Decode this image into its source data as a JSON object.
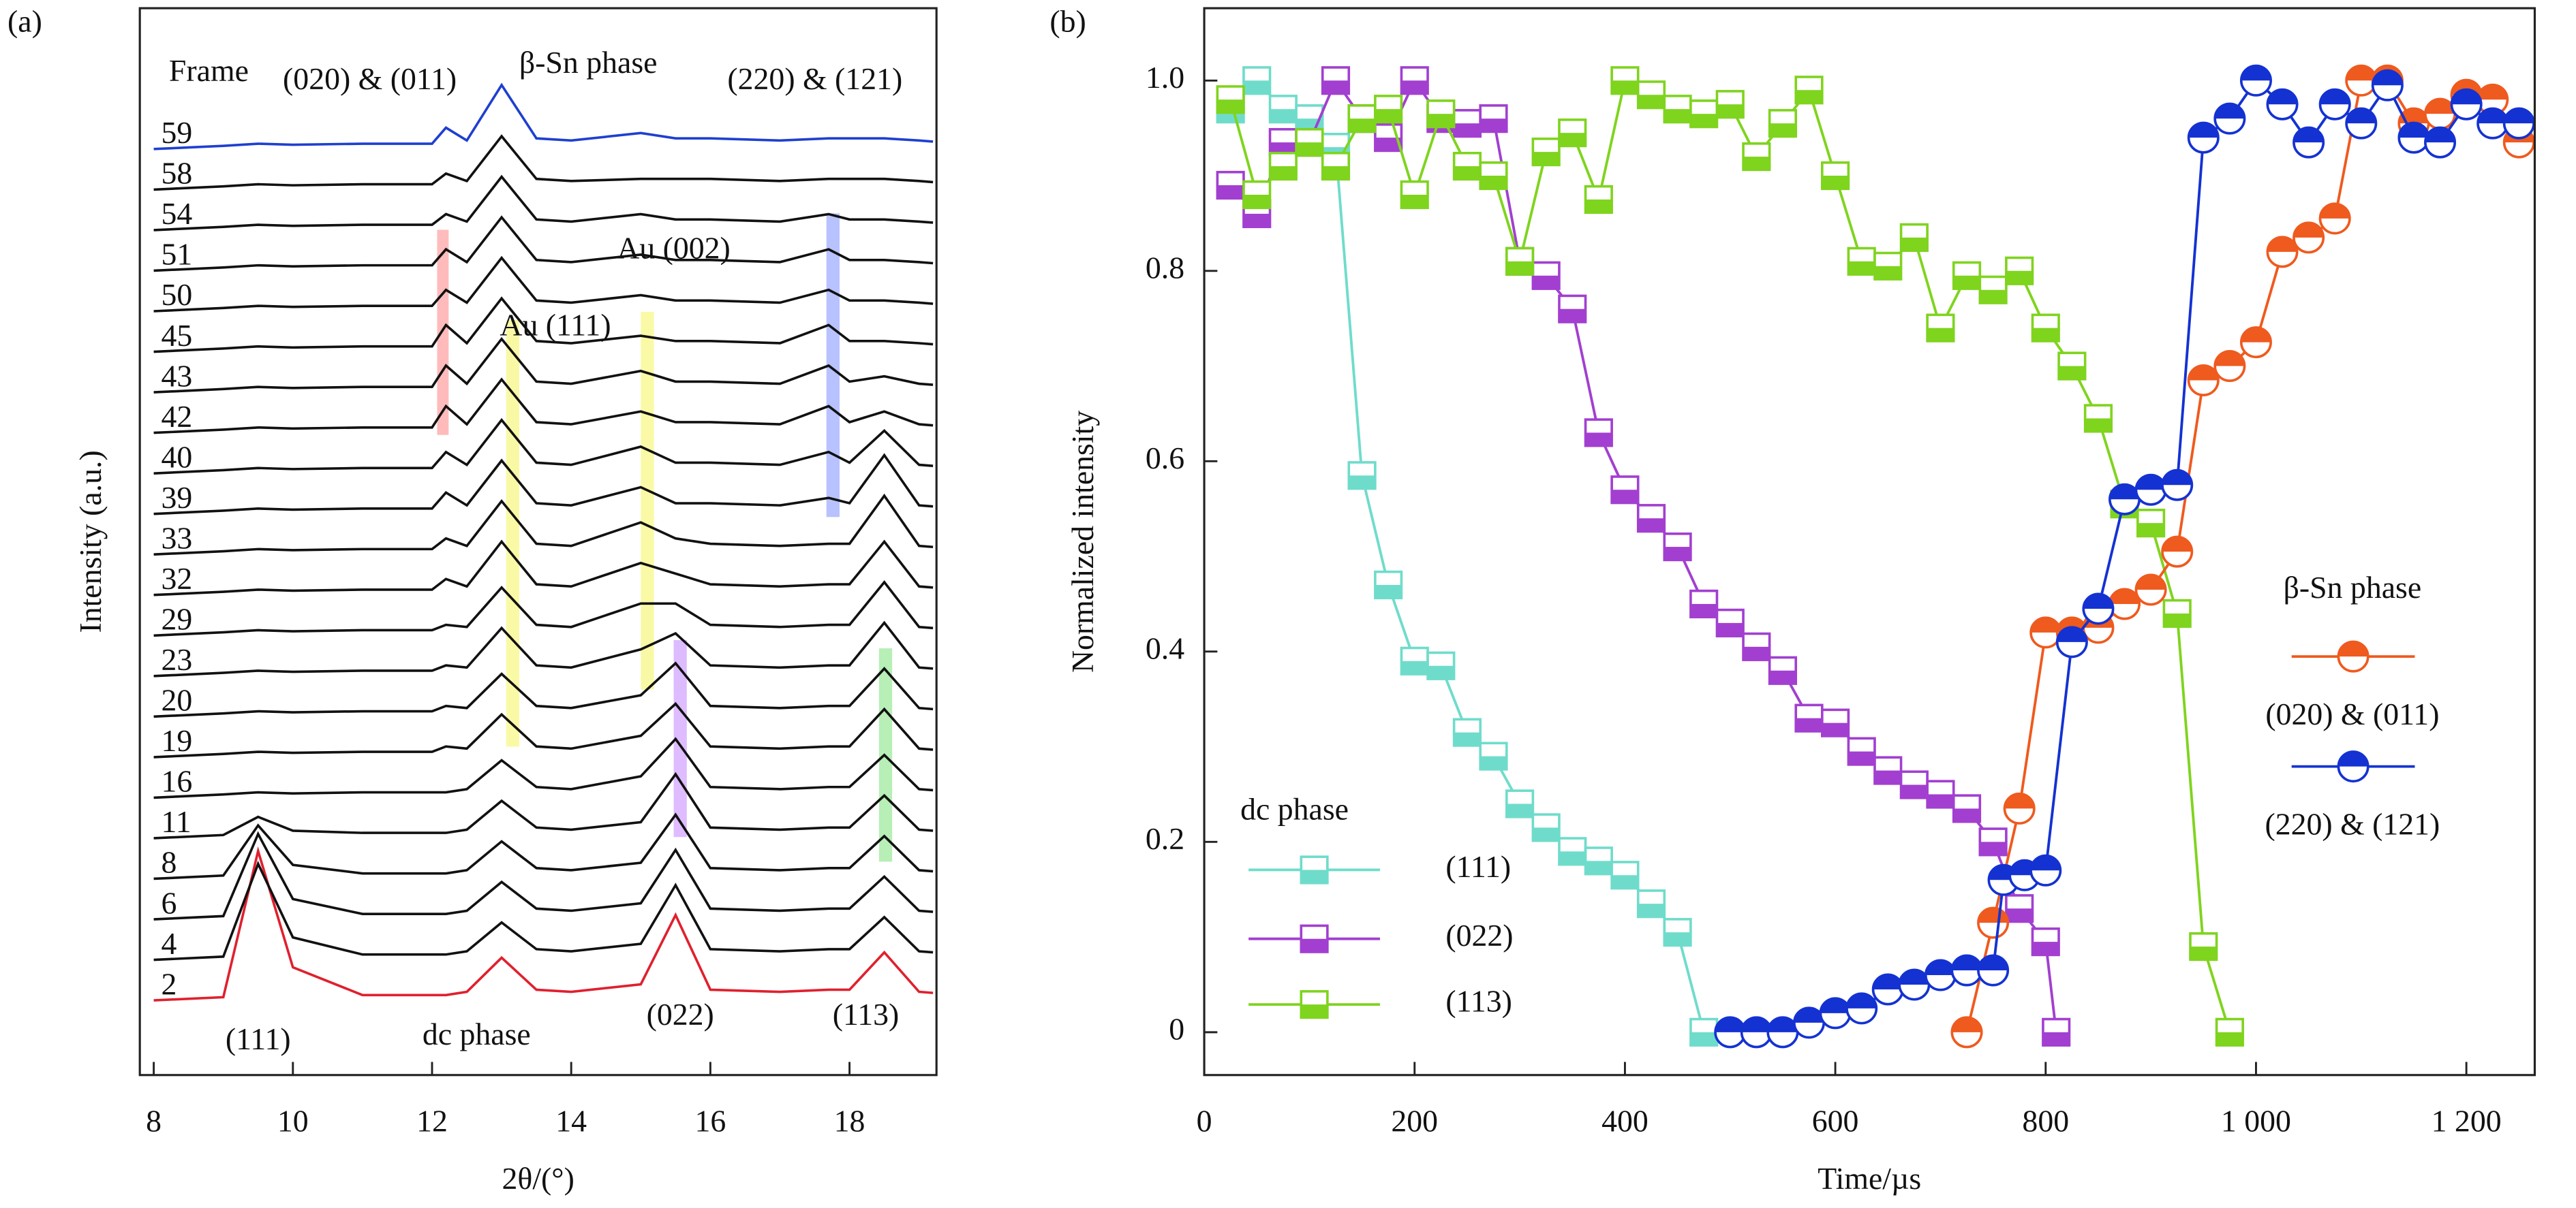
{
  "chart_data": [
    {
      "type": "line",
      "panel_label": "(a)",
      "x_label": "2θ/(°)",
      "y_label": "Intensity (a.u.)",
      "xlim": [
        7.8,
        19.25
      ],
      "xticks": [
        8,
        10,
        12,
        14,
        16,
        18
      ],
      "ylim": [
        0,
        100
      ],
      "annotations": [
        "Frame",
        "(020) & (011)",
        "β-Sn phase",
        "(220) & (121)",
        "Au (002)",
        "Au (111)",
        "(111)",
        "dc phase",
        "(022)",
        "(113)"
      ],
      "x": [
        8,
        9,
        9.5,
        10,
        11,
        12,
        12.2,
        12.5,
        13,
        13.5,
        14,
        15,
        15.5,
        16,
        17,
        17.7,
        18,
        18.5,
        19,
        19.2
      ],
      "series": [
        {
          "name": "2",
          "color": "#e0202e",
          "values": [
            7,
            7.3,
            21,
            10.1,
            7.5,
            7.5,
            7.5,
            7.8,
            11,
            8,
            7.8,
            8.5,
            15,
            8,
            7.8,
            8,
            8,
            11.5,
            7.8,
            7.7
          ]
        },
        {
          "name": "4",
          "color": "#111111",
          "values": [
            10.8,
            11.1,
            19.8,
            12.9,
            11.3,
            11.3,
            11.3,
            11.6,
            14.3,
            11.8,
            11.6,
            12.3,
            17.8,
            11.8,
            11.6,
            11.8,
            11.8,
            14.8,
            11.6,
            11.5
          ]
        },
        {
          "name": "6",
          "color": "#111111",
          "values": [
            14.6,
            14.9,
            22.6,
            16.5,
            15.1,
            15.1,
            15.1,
            15.4,
            18.1,
            15.6,
            15.4,
            16.1,
            21.1,
            15.6,
            15.4,
            15.6,
            15.6,
            18.6,
            15.4,
            15.3
          ]
        },
        {
          "name": "8",
          "color": "#111111",
          "values": [
            18.4,
            18.7,
            23.4,
            19.7,
            18.9,
            18.9,
            18.9,
            19.2,
            21.9,
            19.4,
            19.2,
            19.9,
            24.4,
            19.4,
            19.2,
            19.4,
            19.4,
            22.4,
            19.2,
            19.1
          ]
        },
        {
          "name": "11",
          "color": "#111111",
          "values": [
            22.2,
            22.5,
            24.2,
            22.9,
            22.7,
            22.7,
            22.7,
            23,
            25.7,
            23.2,
            23,
            23.7,
            28.2,
            23.2,
            23,
            23.2,
            23.2,
            26.2,
            23,
            22.9
          ]
        },
        {
          "name": "16",
          "color": "#111111",
          "values": [
            26,
            26.3,
            26.5,
            26.4,
            26.5,
            26.5,
            26.5,
            26.8,
            29.5,
            27,
            26.8,
            28,
            31.5,
            27,
            26.8,
            27,
            27,
            30,
            26.8,
            26.7
          ]
        },
        {
          "name": "19",
          "color": "#111111",
          "values": [
            29.8,
            30.1,
            30.3,
            30.2,
            30.3,
            30.3,
            30.8,
            30.6,
            33.8,
            30.8,
            30.6,
            31.8,
            34.8,
            30.8,
            30.6,
            30.8,
            30.8,
            34.3,
            30.6,
            30.5
          ]
        },
        {
          "name": "20",
          "color": "#111111",
          "values": [
            33.6,
            33.9,
            34.1,
            34,
            34.1,
            34.1,
            34.6,
            34.4,
            37.6,
            34.6,
            34.4,
            35.6,
            38.6,
            34.6,
            34.4,
            34.6,
            34.6,
            38.1,
            34.4,
            34.3
          ]
        },
        {
          "name": "23",
          "color": "#111111",
          "values": [
            37.4,
            37.7,
            37.9,
            37.8,
            37.9,
            37.9,
            38.4,
            38.2,
            41.9,
            38.4,
            38.2,
            39.9,
            41.4,
            38.4,
            38.2,
            38.4,
            38.4,
            42.4,
            38.2,
            38.1
          ]
        },
        {
          "name": "29",
          "color": "#111111",
          "values": [
            41.2,
            41.5,
            41.7,
            41.6,
            41.7,
            41.7,
            42.2,
            42,
            45.7,
            42.2,
            42,
            44.2,
            44.2,
            42.2,
            42,
            42.2,
            42.2,
            46.2,
            42,
            41.9
          ]
        },
        {
          "name": "32",
          "color": "#111111",
          "values": [
            45,
            45.3,
            45.5,
            45.4,
            45.5,
            45.5,
            46.5,
            45.8,
            50,
            46,
            45.8,
            48,
            47,
            46,
            45.8,
            46,
            46,
            50,
            45.8,
            45.7
          ]
        },
        {
          "name": "33",
          "color": "#111111",
          "values": [
            48.8,
            49.1,
            49.3,
            49.2,
            49.3,
            49.3,
            50.3,
            49.6,
            53.8,
            49.8,
            49.6,
            51.8,
            50.3,
            49.8,
            49.6,
            49.8,
            49.8,
            54.3,
            49.6,
            49.5
          ]
        },
        {
          "name": "39",
          "color": "#111111",
          "values": [
            52.6,
            52.9,
            53.1,
            53,
            53.1,
            53.1,
            54.6,
            53.4,
            57.6,
            53.6,
            53.4,
            55.1,
            53.6,
            53.6,
            53.4,
            54.1,
            53.6,
            58.1,
            53.4,
            53.3
          ]
        },
        {
          "name": "40",
          "color": "#111111",
          "values": [
            56.4,
            56.7,
            56.9,
            56.8,
            56.9,
            56.9,
            58.4,
            57.2,
            61.4,
            57.4,
            57.2,
            58.9,
            57.4,
            57.4,
            57.2,
            58.4,
            57.4,
            60.4,
            57.2,
            57.1
          ]
        },
        {
          "name": "42",
          "color": "#111111",
          "values": [
            60.2,
            60.5,
            60.7,
            60.6,
            60.7,
            60.7,
            62.7,
            61,
            65.2,
            61.2,
            61,
            62.2,
            61.2,
            61.2,
            61,
            62.7,
            61.2,
            62.2,
            61,
            60.9
          ]
        },
        {
          "name": "43",
          "color": "#111111",
          "values": [
            64,
            64.3,
            64.5,
            64.4,
            64.5,
            64.5,
            66.5,
            64.8,
            69,
            65,
            64.8,
            66,
            65,
            65,
            64.8,
            66.5,
            65,
            65.5,
            64.8,
            64.7
          ]
        },
        {
          "name": "45",
          "color": "#111111",
          "values": [
            67.8,
            68.1,
            68.3,
            68.2,
            68.3,
            68.3,
            70.3,
            68.6,
            72.8,
            68.8,
            68.6,
            69.3,
            68.8,
            68.8,
            68.6,
            70.3,
            68.8,
            68.8,
            68.6,
            68.5
          ]
        },
        {
          "name": "50",
          "color": "#111111",
          "values": [
            71.6,
            71.9,
            72.1,
            72,
            72.1,
            72.1,
            73.6,
            72.4,
            76.6,
            72.6,
            72.4,
            73.1,
            72.6,
            72.6,
            72.4,
            73.6,
            72.6,
            72.6,
            72.4,
            72.3
          ]
        },
        {
          "name": "51",
          "color": "#111111",
          "values": [
            75.4,
            75.7,
            75.9,
            75.8,
            75.9,
            75.9,
            77.4,
            76.2,
            80.4,
            76.4,
            76.2,
            76.9,
            76.4,
            76.4,
            76.2,
            77.4,
            76.4,
            76.4,
            76.2,
            76.1
          ]
        },
        {
          "name": "54",
          "color": "#111111",
          "values": [
            79.2,
            79.5,
            79.7,
            79.6,
            79.7,
            79.7,
            80.7,
            80,
            84.2,
            80.2,
            80,
            80.7,
            80.2,
            80.2,
            80,
            80.7,
            80.2,
            80.2,
            80,
            79.9
          ]
        },
        {
          "name": "58",
          "color": "#111111",
          "values": [
            83,
            83.3,
            83.5,
            83.4,
            83.5,
            83.5,
            84.5,
            83.8,
            88,
            84,
            83.8,
            84,
            84,
            84,
            83.8,
            84,
            84,
            84,
            83.8,
            83.7
          ]
        },
        {
          "name": "59",
          "color": "#1f3fd0",
          "values": [
            86.8,
            87.1,
            87.3,
            87.2,
            87.3,
            87.3,
            88.8,
            87.6,
            92.8,
            87.8,
            87.6,
            88.3,
            87.8,
            87.8,
            87.6,
            87.8,
            87.8,
            87.8,
            87.6,
            87.5
          ]
        }
      ]
    },
    {
      "type": "line",
      "panel_label": "(b)",
      "x_label": "Time/µs",
      "y_label": "Normalized intensity",
      "xlim": [
        0,
        1265
      ],
      "xticks": [
        0,
        200,
        400,
        600,
        800,
        {
          "value": 1000,
          "label": "1 000"
        },
        {
          "value": 1200,
          "label": "1 200"
        }
      ],
      "ylim": [
        -0.045,
        1.076
      ],
      "yticks": [
        0,
        0.2,
        0.4,
        0.6,
        0.8,
        {
          "value": 1,
          "label": "1.0"
        }
      ],
      "groups": [
        {
          "name": "dc phase",
          "marker": "square",
          "series": [
            {
              "name": "(111)",
              "color": "#6fdccb",
              "x": [
                25,
                50,
                75,
                100,
                125,
                150,
                175,
                200,
                225,
                250,
                275,
                300,
                325,
                350,
                375,
                400,
                425,
                450,
                475
              ],
              "values": [
                0.97,
                1.0,
                0.97,
                0.96,
                0.93,
                0.585,
                0.47,
                0.39,
                0.385,
                0.315,
                0.29,
                0.24,
                0.215,
                0.19,
                0.18,
                0.165,
                0.135,
                0.105,
                0
              ]
            },
            {
              "name": "(022)",
              "color": "#a23fd0",
              "x": [
                25,
                50,
                75,
                100,
                125,
                150,
                175,
                200,
                225,
                250,
                275,
                300,
                325,
                350,
                375,
                400,
                425,
                450,
                475,
                500,
                525,
                550,
                575,
                600,
                625,
                650,
                675,
                700,
                725,
                750,
                775,
                800,
                810
              ],
              "values": [
                0.89,
                0.86,
                0.935,
                0.935,
                1.0,
                0.96,
                0.94,
                1.0,
                0.96,
                0.955,
                0.96,
                0.81,
                0.795,
                0.76,
                0.63,
                0.57,
                0.54,
                0.51,
                0.45,
                0.43,
                0.405,
                0.38,
                0.33,
                0.325,
                0.295,
                0.275,
                0.26,
                0.25,
                0.235,
                0.2,
                0.13,
                0.095,
                0
              ]
            },
            {
              "name": "(113)",
              "color": "#7fd41e",
              "x": [
                25,
                50,
                75,
                100,
                125,
                150,
                175,
                200,
                225,
                250,
                275,
                300,
                325,
                350,
                375,
                400,
                425,
                450,
                475,
                500,
                525,
                550,
                575,
                600,
                625,
                650,
                675,
                700,
                725,
                750,
                775,
                800,
                825,
                850,
                875,
                900,
                925,
                950,
                975
              ],
              "values": [
                0.98,
                0.88,
                0.91,
                0.935,
                0.91,
                0.96,
                0.97,
                0.88,
                0.965,
                0.91,
                0.9,
                0.81,
                0.925,
                0.945,
                0.875,
                1.0,
                0.985,
                0.97,
                0.965,
                0.975,
                0.92,
                0.955,
                0.99,
                0.9,
                0.81,
                0.805,
                0.835,
                0.74,
                0.795,
                0.78,
                0.8,
                0.74,
                0.7,
                0.645,
                0.555,
                0.535,
                0.44,
                0.09,
                0
              ]
            }
          ]
        },
        {
          "name": "β-Sn phase",
          "marker": "circle",
          "series": [
            {
              "name": "(020) & (011)",
              "color": "#ef5a1e",
              "x": [
                725,
                750,
                775,
                800,
                825,
                850,
                875,
                900,
                925,
                950,
                975,
                1000,
                1025,
                1050,
                1075,
                1100,
                1125,
                1150,
                1175,
                1200,
                1225,
                1250
              ],
              "values": [
                0,
                0.115,
                0.235,
                0.42,
                0.42,
                0.425,
                0.45,
                0.465,
                0.505,
                0.685,
                0.7,
                0.725,
                0.82,
                0.835,
                0.855,
                1.0,
                1.0,
                0.955,
                0.965,
                0.985,
                0.98,
                0.935
              ]
            },
            {
              "name": "(220) & (121)",
              "color": "#1432d2",
              "x": [
                500,
                525,
                550,
                575,
                600,
                625,
                650,
                675,
                700,
                725,
                750,
                760,
                780,
                800,
                825,
                850,
                875,
                900,
                925,
                950,
                975,
                1000,
                1025,
                1050,
                1075,
                1100,
                1125,
                1150,
                1175,
                1200,
                1225,
                1250
              ],
              "values": [
                0,
                0,
                0,
                0.01,
                0.02,
                0.025,
                0.045,
                0.05,
                0.06,
                0.065,
                0.065,
                0.16,
                0.165,
                0.17,
                0.41,
                0.445,
                0.56,
                0.57,
                0.575,
                0.94,
                0.96,
                1.0,
                0.975,
                0.935,
                0.975,
                0.955,
                0.995,
                0.94,
                0.935,
                0.975,
                0.955,
                0.955
              ]
            }
          ]
        }
      ]
    }
  ]
}
